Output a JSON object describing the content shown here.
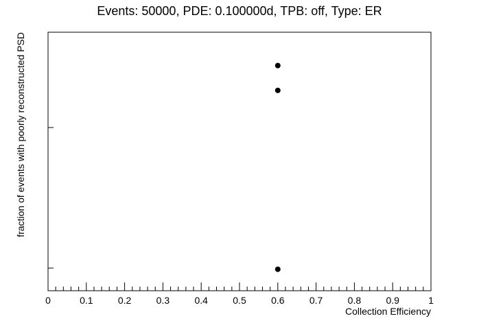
{
  "chart_data": {
    "type": "scatter",
    "title": "Events: 50000, PDE: 0.100000d, TPB: off, Type: ER",
    "xlabel": "Collection Efficiency",
    "ylabel": "fraction of events with poorly reconstructed PSD",
    "xlim": [
      0,
      1
    ],
    "x_ticks": [
      "0",
      "0.1",
      "0.2",
      "0.3",
      "0.4",
      "0.5",
      "0.6",
      "0.7",
      "0.8",
      "0.9",
      "1"
    ],
    "y_ticks_labeled": false,
    "grid": false,
    "marker_color": "#000000",
    "points": [
      {
        "x": 0.6,
        "y_rel": 0.871
      },
      {
        "x": 0.6,
        "y_rel": 0.775
      },
      {
        "x": 0.6,
        "y_rel": 0.083
      }
    ]
  }
}
